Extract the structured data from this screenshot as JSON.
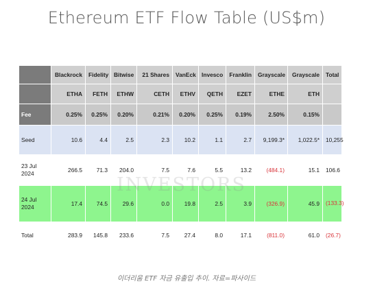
{
  "title": "Ethereum ETF Flow Table (US$m)",
  "columns": [
    {
      "issuer": "Blackrock",
      "ticker": "ETHA",
      "fee": "0.25%",
      "seed": "10.6",
      "jul23": "266.5",
      "jul24": "17.4",
      "total": "283.9"
    },
    {
      "issuer": "Fidelity",
      "ticker": "FETH",
      "fee": "0.25%",
      "seed": "4.4",
      "jul23": "71.3",
      "jul24": "74.5",
      "total": "145.8"
    },
    {
      "issuer": "Bitwise",
      "ticker": "ETHW",
      "fee": "0.20%",
      "seed": "2.5",
      "jul23": "204.0",
      "jul24": "29.6",
      "total": "233.6"
    },
    {
      "issuer": "21 Shares",
      "ticker": "CETH",
      "fee": "0.21%",
      "seed": "2.3",
      "jul23": "7.5",
      "jul24": "0.0",
      "total": "7.5"
    },
    {
      "issuer": "VanEck",
      "ticker": "ETHV",
      "fee": "0.20%",
      "seed": "10.2",
      "jul23": "7.6",
      "jul24": "19.8",
      "total": "27.4"
    },
    {
      "issuer": "Invesco",
      "ticker": "QETH",
      "fee": "0.25%",
      "seed": "1.1",
      "jul23": "5.5",
      "jul24": "2.5",
      "total": "8.0"
    },
    {
      "issuer": "Franklin",
      "ticker": "EZET",
      "fee": "0.19%",
      "seed": "2.7",
      "jul23": "13.2",
      "jul24": "3.9",
      "total": "17.1"
    },
    {
      "issuer": "Grayscale",
      "ticker": "ETHE",
      "fee": "2.50%",
      "seed": "9,199.3*",
      "jul23": "(484.1)",
      "jul24": "(326.9)",
      "total": "(811.0)"
    },
    {
      "issuer": "Grayscale",
      "ticker": "ETH",
      "fee": "0.15%",
      "seed": "1,022.5*",
      "jul23": "15.1",
      "jul24": "45.9",
      "total": "61.0"
    }
  ],
  "total_column": {
    "header": "Total",
    "seed": "10,255",
    "jul23": "106.6",
    "jul24": "(133.3)",
    "total": "(26.7)"
  },
  "row_labels": {
    "fee": "Fee",
    "seed": "Seed",
    "jul23": "23 Jul 2024",
    "jul24": "24 Jul 2024",
    "total": "Total"
  },
  "watermark": "INVESTORS",
  "caption": "이더리움 ETF 자금 유출입 추이. 자료=파사이드",
  "colors": {
    "header_gray": "#cfcfcf",
    "label_dark": "#7b7b7b",
    "seed_blue": "#dbe3f3",
    "highlight_green": "#8ef58e",
    "negative_red": "#d9343a"
  }
}
